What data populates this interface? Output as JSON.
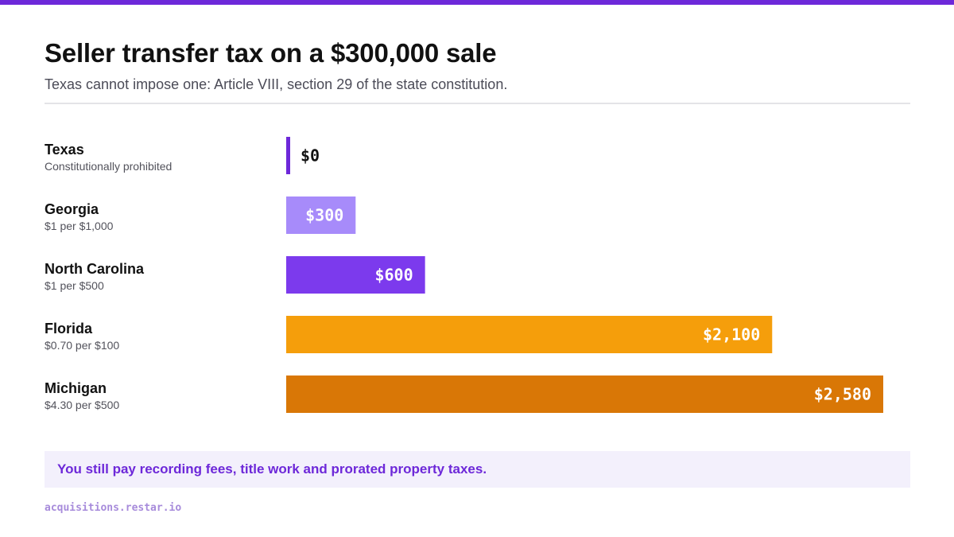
{
  "title": "Seller transfer tax on a $300,000 sale",
  "subtitle": "Texas cannot impose one: Article VIII, section 29 of the state constitution.",
  "rows": [
    {
      "name": "Texas",
      "note": "Constitutionally prohibited",
      "value_label": "$0"
    },
    {
      "name": "Georgia",
      "note": "$1 per $1,000",
      "value_label": "$300"
    },
    {
      "name": "North Carolina",
      "note": "$1 per $500",
      "value_label": "$600"
    },
    {
      "name": "Florida",
      "note": "$0.70 per $100",
      "value_label": "$2,100"
    },
    {
      "name": "Michigan",
      "note": "$4.30 per $500",
      "value_label": "$2,580"
    }
  ],
  "chart_data": {
    "type": "bar",
    "orientation": "horizontal",
    "title": "Seller transfer tax on a $300,000 sale",
    "subtitle": "Texas cannot impose one: Article VIII, section 29 of the state constitution.",
    "categories": [
      "Texas",
      "Georgia",
      "North Carolina",
      "Florida",
      "Michigan"
    ],
    "values": [
      0,
      300,
      600,
      2100,
      2580
    ],
    "colors": [
      "#6d28d9",
      "#a78bfa",
      "#7c3aed",
      "#f59e0b",
      "#d97706"
    ],
    "xlim": [
      0,
      2580
    ],
    "grid": false,
    "legend": "none"
  },
  "callout": "You still pay recording fees, title work and prorated property taxes.",
  "footer": "acquisitions.restar.io",
  "colors": {
    "accent": "#6d28d9",
    "callout_bg": "#f3f0fc"
  }
}
